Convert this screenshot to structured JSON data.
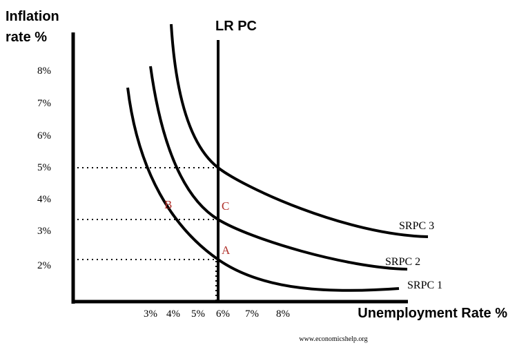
{
  "y_axis_label": [
    "Inflation",
    "rate %"
  ],
  "x_axis_label": "Unemployment Rate %",
  "y_tick_labels": [
    "8%",
    "7%",
    "6%",
    "5%",
    "4%",
    "3%",
    "2%"
  ],
  "x_tick_labels": [
    "3%",
    "4%",
    "5%",
    "6%",
    "7%",
    "8%"
  ],
  "lrpc_label": "LR PC",
  "curve_labels": [
    "SRPC 3",
    "SRPC 2",
    "SRPC 1"
  ],
  "point_labels": [
    "B",
    "C",
    "A"
  ],
  "source": "www.economicshelp.org"
}
